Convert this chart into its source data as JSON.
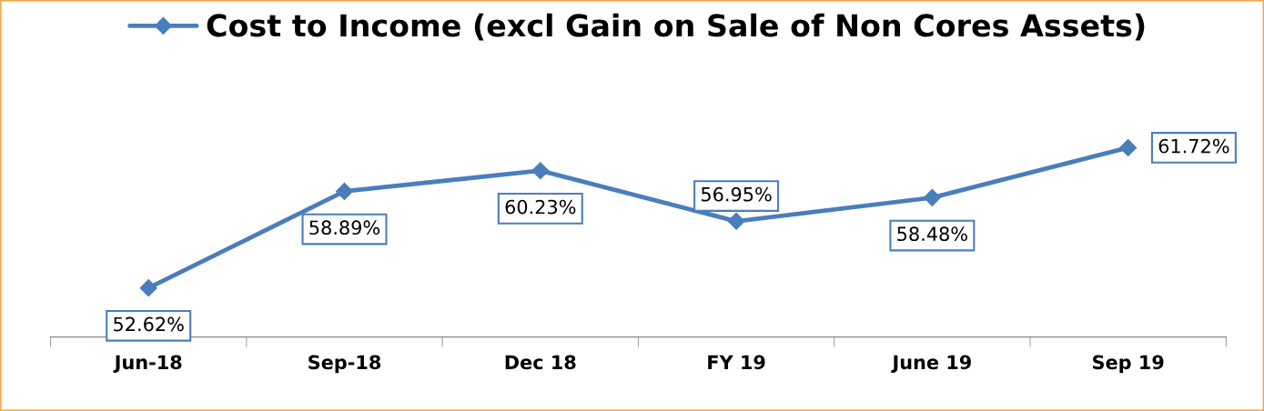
{
  "chart_data": {
    "type": "line",
    "categories": [
      "Jun-18",
      "Sep-18",
      "Dec 18",
      "FY 19",
      "June 19",
      "Sep 19"
    ],
    "series": [
      {
        "name": "Cost to Income (excl Gain on Sale of Non Cores Assets)",
        "color": "#4a7ebb",
        "values": [
          52.62,
          58.89,
          60.23,
          56.95,
          58.48,
          61.72
        ],
        "value_labels": [
          "52.62%",
          "58.89%",
          "60.23%",
          "56.95%",
          "58.48%",
          "61.72%"
        ]
      }
    ],
    "marker": "diamond",
    "line_style": "solid",
    "legend": "top",
    "grid": false
  }
}
